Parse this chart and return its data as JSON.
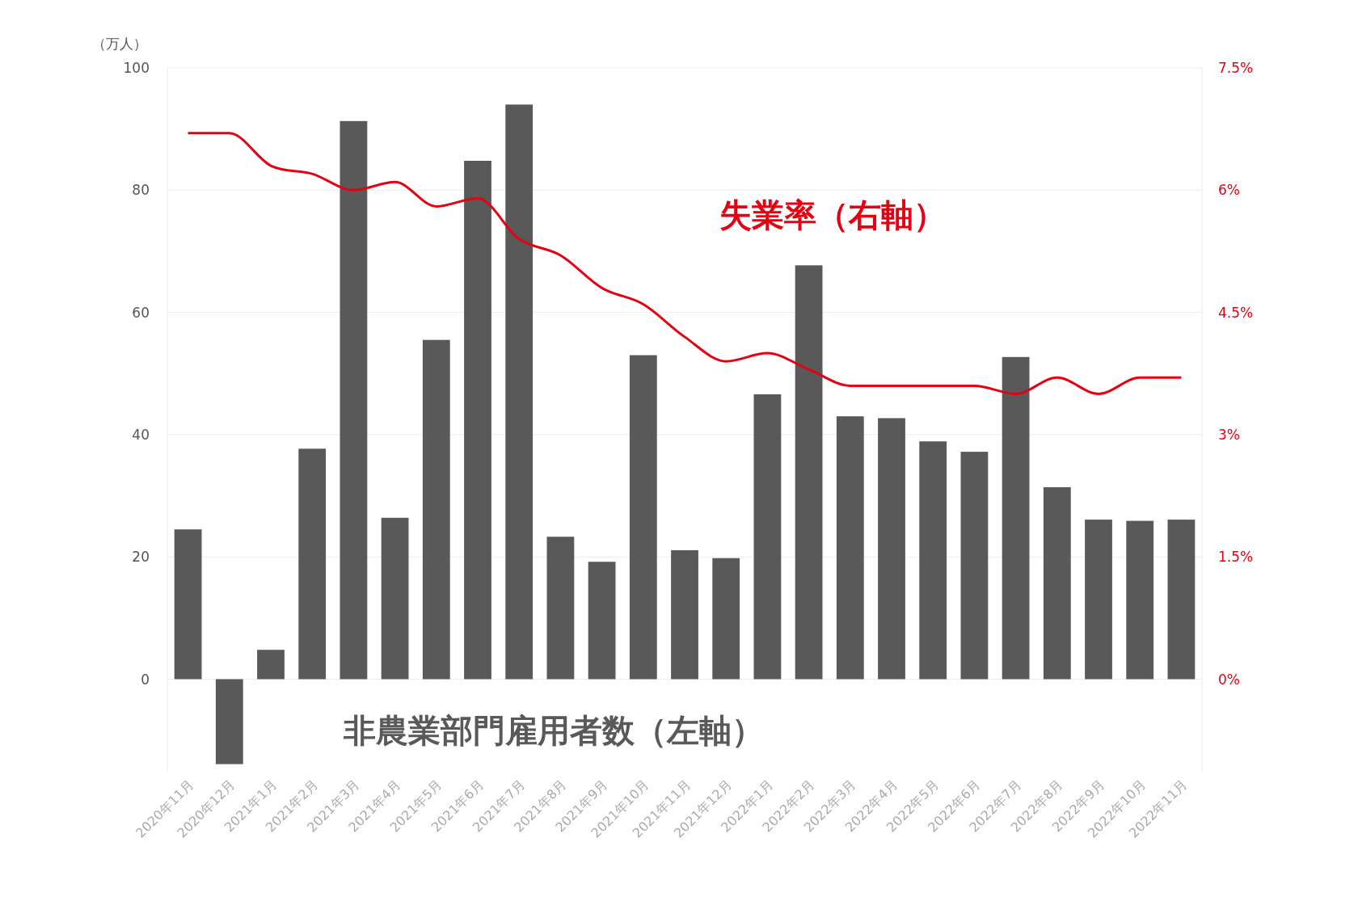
{
  "chart_data": {
    "type": "bar",
    "ylabel": "（万人）",
    "categories": [
      "2020年11月",
      "2020年12月",
      "2021年1月",
      "2021年2月",
      "2021年3月",
      "2021年4月",
      "2021年5月",
      "2021年6月",
      "2021年7月",
      "2021年8月",
      "2021年9月",
      "2021年10月",
      "2021年11月",
      "2021年12月",
      "2022年1月",
      "2022年2月",
      "2022年3月",
      "2022年4月",
      "2022年5月",
      "2022年6月",
      "2022年7月",
      "2022年8月",
      "2022年9月",
      "2022年10月",
      "2022年11月"
    ],
    "series": [
      {
        "name": "非農業部門雇用者数（左軸）",
        "color": "#595959",
        "values": [
          24.5,
          -13.9,
          4.8,
          37.7,
          91.3,
          26.4,
          55.5,
          84.8,
          94.0,
          23.3,
          19.2,
          53.0,
          21.1,
          19.8,
          46.6,
          67.7,
          43.0,
          42.7,
          38.9,
          37.2,
          52.7,
          31.4,
          26.1,
          25.9,
          26.1
        ]
      },
      {
        "name": "失業率（右軸）",
        "type": "line",
        "axis": "y2",
        "color": "#e60012",
        "values": [
          6.7,
          6.7,
          6.3,
          6.2,
          6.0,
          6.1,
          5.8,
          5.9,
          5.4,
          5.2,
          4.8,
          4.6,
          4.2,
          3.9,
          4.0,
          3.8,
          3.6,
          3.6,
          3.6,
          3.6,
          3.5,
          3.7,
          3.5,
          3.7,
          3.7
        ]
      }
    ],
    "ylim": [
      -15,
      100
    ],
    "yticks": [
      0,
      20,
      40,
      60,
      80,
      100
    ],
    "y2lim": [
      -1.125,
      7.5
    ],
    "y2ticks": [
      {
        "value": 0,
        "label": "0%"
      },
      {
        "value": 1.5,
        "label": "1.5%"
      },
      {
        "value": 3,
        "label": "3%"
      },
      {
        "value": 4.5,
        "label": "4.5%"
      },
      {
        "value": 6,
        "label": "6%"
      },
      {
        "value": 7.5,
        "label": "7.5%"
      }
    ],
    "grid": "y",
    "legend": false,
    "marker": "none",
    "line_style": "solid"
  }
}
